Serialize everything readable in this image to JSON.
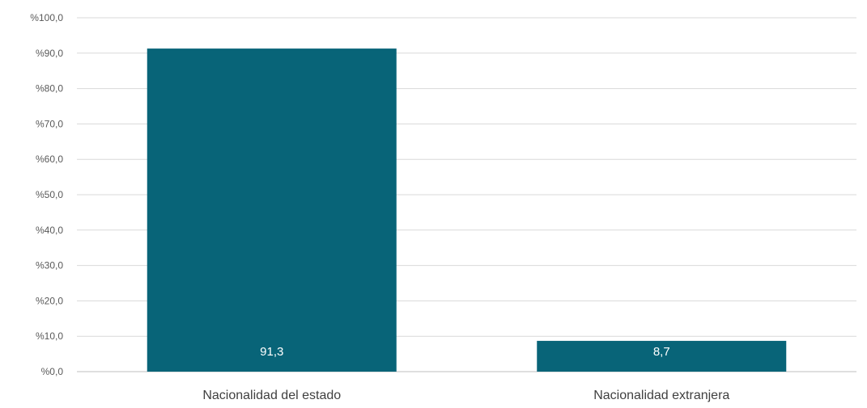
{
  "chart_data": {
    "type": "bar",
    "title": "",
    "xlabel": "",
    "ylabel": "",
    "categories": [
      "Nacionalidad del estado",
      "Nacionalidad extranjera"
    ],
    "values": [
      91.3,
      8.7
    ],
    "data_labels": [
      "91,3",
      "8,7"
    ],
    "ylim": [
      0,
      100
    ],
    "yticks": [
      0,
      10,
      20,
      30,
      40,
      50,
      60,
      70,
      80,
      90,
      100
    ],
    "ytick_labels": [
      "%0,0",
      "%10,0",
      "%20,0",
      "%30,0",
      "%40,0",
      "%50,0",
      "%60,0",
      "%70,0",
      "%80,0",
      "%90,0",
      "%100,0"
    ],
    "grid": true,
    "legend": "none",
    "colors": {
      "bar": "#086478",
      "grid": "#d9d9d9",
      "tick_text": "#595959",
      "category_text": "#404040",
      "data_label_text": "#ffffff"
    }
  }
}
